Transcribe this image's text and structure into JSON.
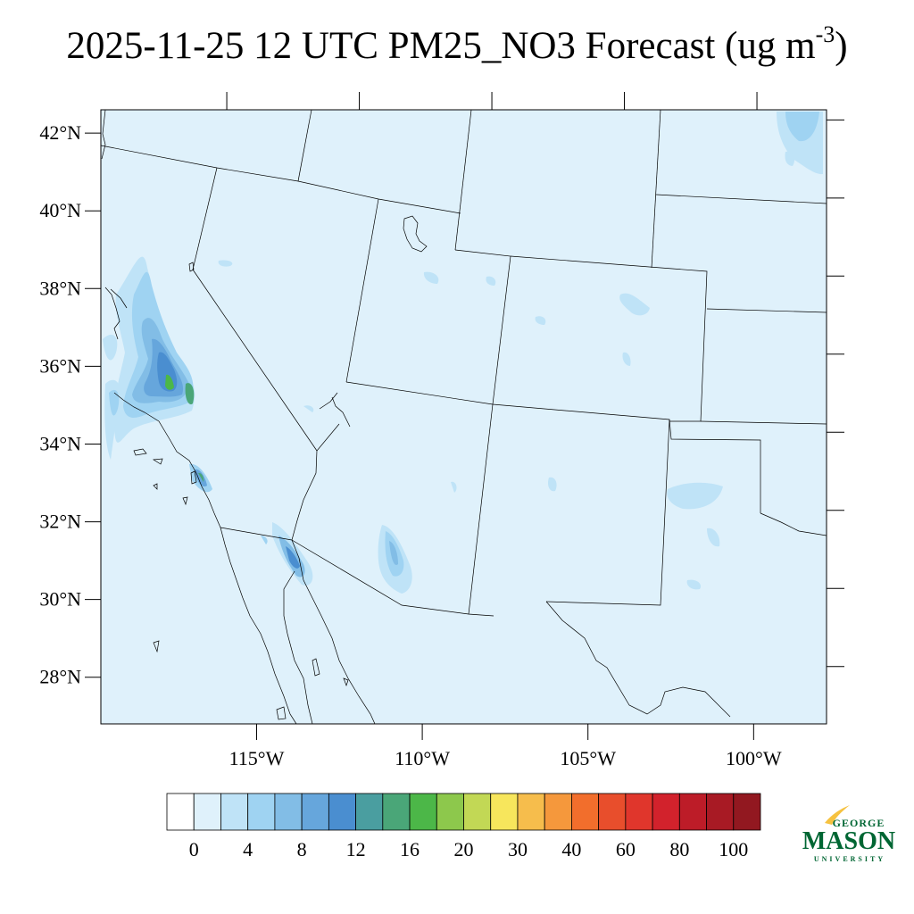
{
  "title": {
    "main": "2025-11-25 12 UTC PM25_NO3 Forecast (ug m",
    "superscript": "-3",
    "close": ")"
  },
  "map": {
    "lon_range": [
      -119.7,
      -97.8
    ],
    "lat_range": [
      26.8,
      42.6
    ],
    "lat_labels": [
      "28°N",
      "30°N",
      "32°N",
      "34°N",
      "36°N",
      "38°N",
      "40°N",
      "42°N"
    ],
    "lon_labels": [
      "115°W",
      "110°W",
      "105°W",
      "100°W"
    ],
    "background_color": "#dff1fb",
    "boundary_color": "#000000"
  },
  "colorbar": {
    "colors": [
      "#ffffff",
      "#dff1fb",
      "#bfe3f7",
      "#9fd3f2",
      "#82bde6",
      "#66a6dc",
      "#4a8ed0",
      "#4a9ea0",
      "#4aa678",
      "#4cb748",
      "#8dc84c",
      "#c2d855",
      "#f7e65c",
      "#f6bd4c",
      "#f5983c",
      "#f26e2c",
      "#e84e2c",
      "#e0362c",
      "#d2222c",
      "#bd1c28",
      "#a81a24",
      "#921820"
    ],
    "labels": [
      "0",
      "4",
      "8",
      "12",
      "16",
      "20",
      "30",
      "40",
      "60",
      "80",
      "100"
    ]
  },
  "logo": {
    "line1": "GEORGE",
    "line2": "MASON",
    "line3": "UNIVERSITY",
    "brand_green": "#006633",
    "brand_gold": "#f6c240"
  }
}
